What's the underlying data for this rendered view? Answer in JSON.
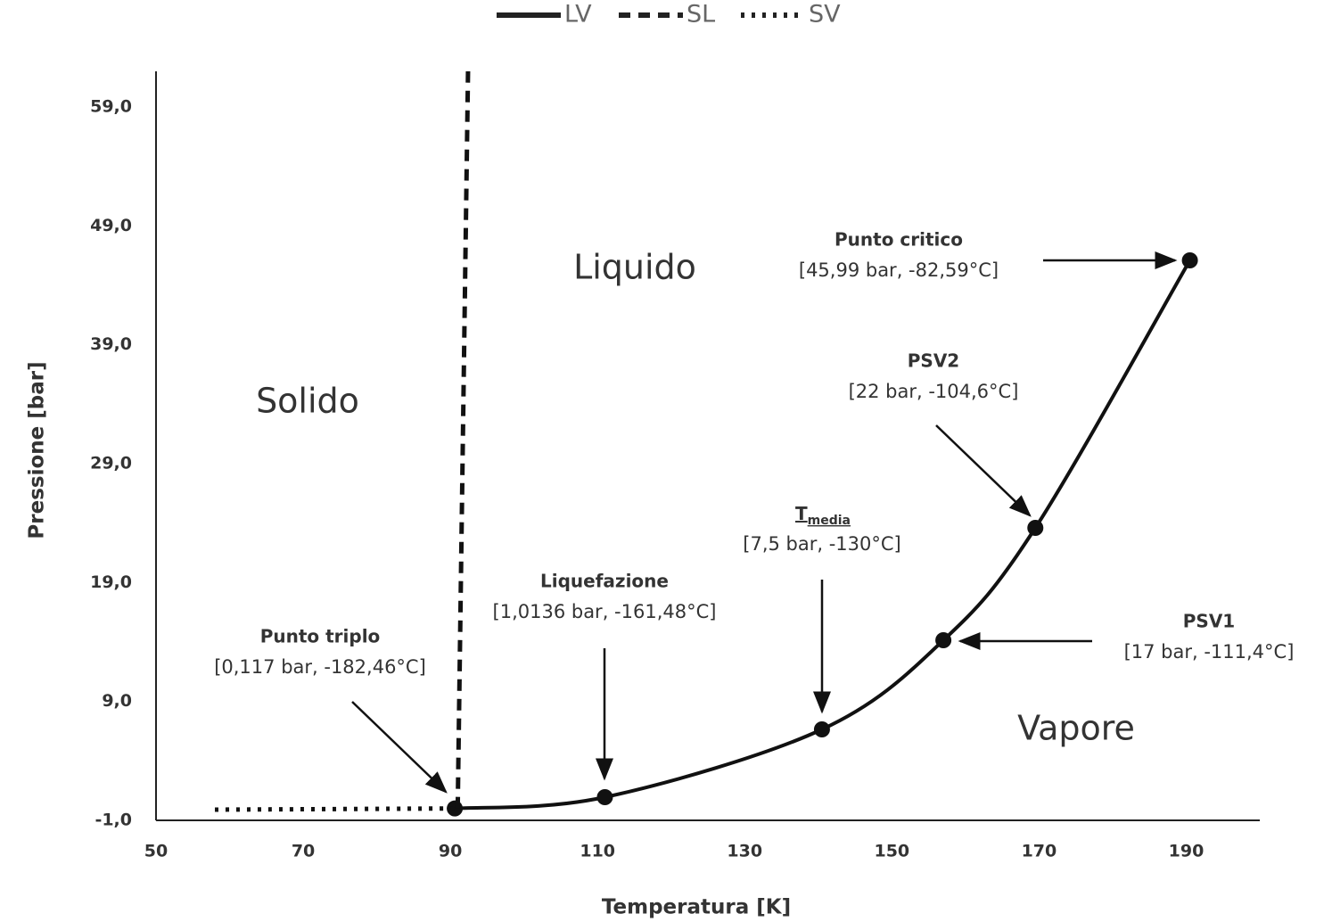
{
  "chart_data": {
    "type": "line",
    "x_label": "Temperatura [K]",
    "y_label": "Pressione [bar]",
    "xlim": [
      50,
      200
    ],
    "xticks": [
      50,
      70,
      90,
      110,
      130,
      150,
      170,
      190
    ],
    "ylim": [
      -1,
      62
    ],
    "yticks": [
      {
        "value": -1,
        "label": "-1,0"
      },
      {
        "value": 9,
        "label": "9,0"
      },
      {
        "value": 19,
        "label": "19,0"
      },
      {
        "value": 29,
        "label": "29,0"
      },
      {
        "value": 39,
        "label": "39,0"
      },
      {
        "value": 49,
        "label": "49,0"
      },
      {
        "value": 59,
        "label": "59,0"
      }
    ],
    "grid": false,
    "legend": "top",
    "series": [
      {
        "name": "LV",
        "color": "#111111",
        "style": "solid",
        "markers": true,
        "x": [
          90.6,
          111,
          140.5,
          157,
          169.5,
          190.5
        ],
        "values": [
          0,
          0.95,
          6.65,
          14.15,
          23.6,
          46.1
        ]
      },
      {
        "name": "SL",
        "color": "#111111",
        "style": "dashed",
        "markers": false,
        "x": [
          91,
          92.4
        ],
        "values": [
          0,
          62
        ]
      },
      {
        "name": "SV",
        "color": "#111111",
        "style": "dotted",
        "markers": false,
        "x": [
          58,
          90.6
        ],
        "values": [
          -0.1,
          0
        ]
      }
    ],
    "regions": [
      "Solido",
      "Liquido",
      "Vapore"
    ],
    "annotations": [
      {
        "label": "Punto critico",
        "text": "[45,99 bar, -82,59°C]"
      },
      {
        "label": "PSV2",
        "text": "[22 bar, -104,6°C]"
      },
      {
        "label": "T",
        "subscript": "media",
        "text": "[7,5 bar, -130°C]"
      },
      {
        "label": "Liquefazione",
        "text": "[1,0136 bar, -161,48°C]"
      },
      {
        "label": "PSV1",
        "text": "[17 bar, -111,4°C]"
      },
      {
        "label": "Punto triplo",
        "text": "[0,117 bar, -182,46°C]"
      }
    ]
  }
}
